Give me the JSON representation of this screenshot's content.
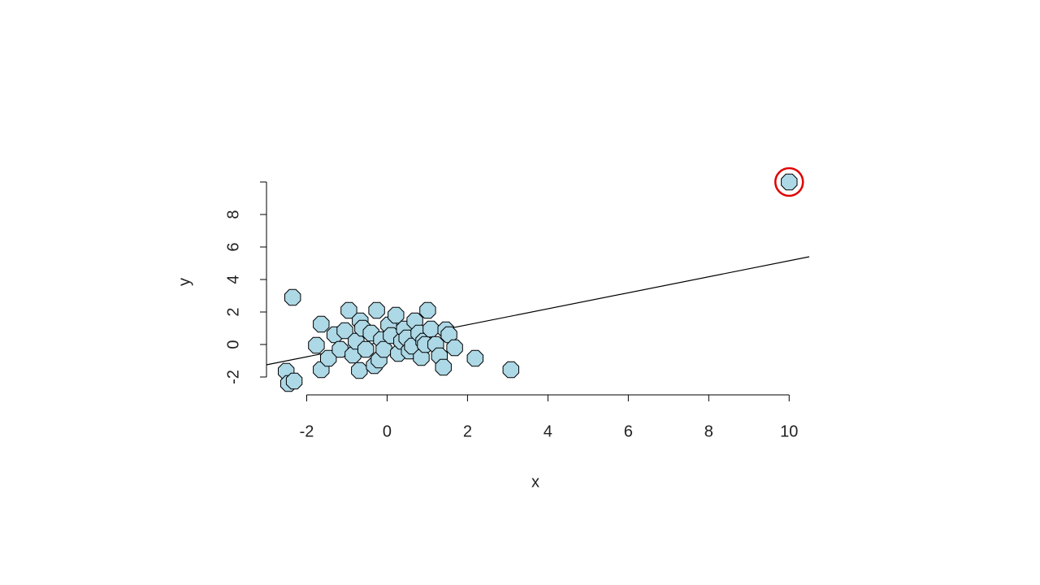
{
  "chart_data": {
    "type": "scatter",
    "x_label": "x",
    "y_label": "y",
    "x": [
      -2.35,
      -2.51,
      -2.45,
      -2.31,
      -1.64,
      -1.76,
      -1.64,
      -1.46,
      -1.3,
      -1.17,
      -1.05,
      -0.95,
      -0.85,
      -0.77,
      -0.69,
      -0.67,
      -0.61,
      -0.53,
      -0.4,
      -0.32,
      -0.26,
      -0.2,
      -0.14,
      -0.08,
      0.04,
      0.1,
      0.22,
      0.28,
      0.36,
      0.43,
      0.49,
      0.55,
      0.63,
      0.69,
      0.79,
      0.85,
      0.91,
      0.95,
      1.01,
      1.09,
      1.21,
      1.3,
      1.4,
      1.46,
      1.54,
      1.68,
      2.19,
      3.08,
      10.0
    ],
    "values": [
      2.9,
      -1.65,
      -2.4,
      -2.25,
      1.25,
      -0.05,
      -1.55,
      -0.85,
      0.6,
      -0.3,
      0.85,
      2.1,
      -0.65,
      0.2,
      -1.6,
      1.45,
      1.0,
      -0.3,
      0.7,
      -1.3,
      2.1,
      -0.95,
      0.3,
      -0.3,
      1.2,
      0.55,
      1.8,
      -0.55,
      0.2,
      0.95,
      0.4,
      -0.4,
      -0.1,
      1.45,
      0.7,
      -0.8,
      0.2,
      0.0,
      2.1,
      0.95,
      0.0,
      -0.7,
      -1.4,
      0.9,
      0.6,
      -0.2,
      -0.85,
      -1.55,
      10.0
    ],
    "color": "#add8e6",
    "edge_color": "#000000",
    "fit_line": {
      "x": [
        -3.0,
        10.5
      ],
      "y": [
        -1.25,
        5.4
      ],
      "color": "#000000"
    },
    "highlight_color": "#e00000",
    "xlim": [
      -3.0,
      10.5
    ],
    "ylim": [
      -2.6,
      10.6
    ],
    "xticks": [
      -2,
      0,
      2,
      4,
      6,
      8,
      10
    ],
    "yticks": [
      -2,
      0,
      2,
      4,
      6,
      8
    ]
  }
}
